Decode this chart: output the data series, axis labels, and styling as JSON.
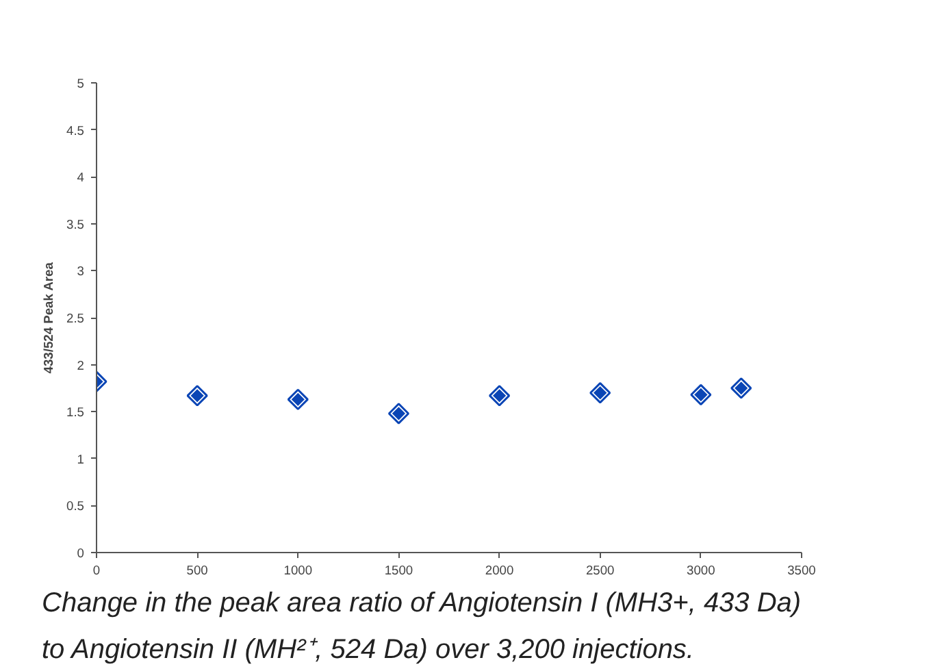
{
  "chart_data": {
    "type": "scatter",
    "ylabel": "433/524 Peak Area",
    "x": [
      0,
      500,
      1000,
      1500,
      2000,
      2500,
      3000,
      3200
    ],
    "values": [
      1.82,
      1.67,
      1.63,
      1.48,
      1.67,
      1.7,
      1.68,
      1.75
    ],
    "color": "#0a45b5",
    "marker": "diamond",
    "xlim": [
      0,
      3500
    ],
    "xticks": [
      0,
      500,
      1000,
      1500,
      2000,
      2500,
      3000,
      3500
    ],
    "ylim": [
      0,
      5
    ],
    "yticks": [
      0,
      0.5,
      1,
      1.5,
      2,
      2.5,
      3,
      3.5,
      4,
      4.5,
      5
    ],
    "grid": false,
    "annotations": [
      "Change in the peak area ratio of Angiotensin I (MH3+, 433 Da)\nto Angiotensin II (MH²⁺, 524 Da) over 3,200 injections."
    ]
  }
}
